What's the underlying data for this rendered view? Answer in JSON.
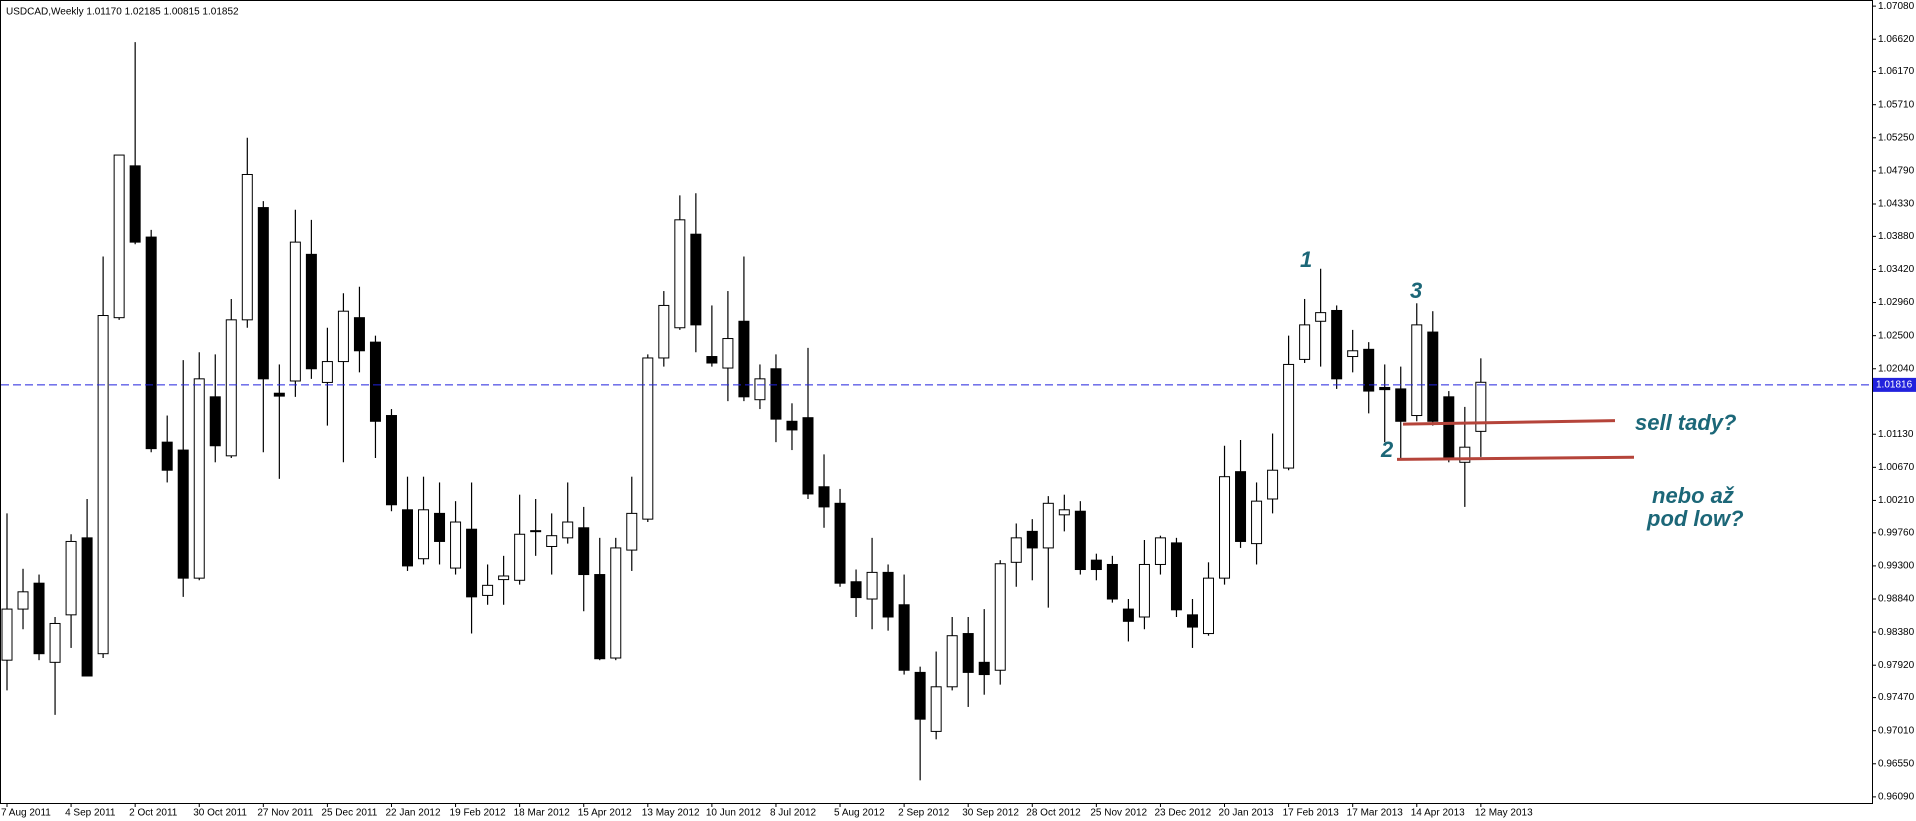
{
  "chart_data": {
    "type": "candlestick",
    "title": "USDCAD,Weekly  1.01170 1.02185 1.00815 1.01852",
    "categories": [
      "7 Aug 2011",
      null,
      null,
      null,
      "4 Sep 2011",
      null,
      null,
      null,
      "2 Oct 2011",
      null,
      null,
      null,
      "30 Oct 2011",
      null,
      null,
      null,
      "27 Nov 2011",
      null,
      null,
      null,
      "25 Dec 2011",
      null,
      null,
      null,
      "22 Jan 2012",
      null,
      null,
      null,
      "19 Feb 2012",
      null,
      null,
      null,
      "18 Mar 2012",
      null,
      null,
      null,
      "15 Apr 2012",
      null,
      null,
      null,
      "13 May 2012",
      null,
      null,
      null,
      "10 Jun 2012",
      null,
      null,
      null,
      "8 Jul 2012",
      null,
      null,
      null,
      "5 Aug 2012",
      null,
      null,
      null,
      "2 Sep 2012",
      null,
      null,
      null,
      "30 Sep 2012",
      null,
      null,
      null,
      "28 Oct 2012",
      null,
      null,
      null,
      "25 Nov 2012",
      null,
      null,
      null,
      "23 Dec 2012",
      null,
      null,
      null,
      "20 Jan 2013",
      null,
      null,
      null,
      "17 Feb 2013",
      null,
      null,
      null,
      "17 Mar 2013",
      null,
      null,
      null,
      "14 Apr 2013",
      null,
      null,
      null,
      "12 May 2013"
    ],
    "open": [
      0.9799,
      0.987,
      0.9906,
      0.9796,
      0.9862,
      0.9969,
      0.9808,
      1.0275,
      1.0486,
      1.0387,
      1.0102,
      1.0091,
      0.9913,
      1.0165,
      1.0083,
      1.0272,
      1.0428,
      1.017,
      1.0187,
      1.0363,
      1.0185,
      1.0214,
      1.0275,
      1.0241,
      1.0139,
      1.0008,
      0.994,
      1.0003,
      0.9927,
      0.9981,
      0.9889,
      0.9911,
      0.991,
      0.9978,
      0.9957,
      0.9969,
      0.9983,
      0.9918,
      0.9802,
      0.9952,
      0.9995,
      1.0219,
      1.0261,
      1.0391,
      1.0221,
      1.0205,
      1.027,
      1.0161,
      1.0204,
      1.0131,
      1.0136,
      1.004,
      1.0017,
      0.9908,
      0.9884,
      0.9921,
      0.9876,
      0.9782,
      0.97,
      0.9762,
      0.9836,
      0.9796,
      0.9785,
      0.9935,
      0.9978,
      0.9955,
      1.0001,
      1.0006,
      0.9938,
      0.9932,
      0.987,
      0.9859,
      0.9932,
      0.9962,
      0.9862,
      0.9836,
      0.9913,
      1.0061,
      0.9961,
      1.0023,
      1.0066,
      1.0217,
      1.027,
      1.0285,
      1.0221,
      1.0231,
      1.0178,
      1.0176,
      1.0139,
      1.0255,
      1.0165,
      1.0074,
      1.0117
    ],
    "high": [
      1.0003,
      0.9926,
      0.9918,
      0.9859,
      0.9974,
      1.0023,
      1.036,
      1.0501,
      1.0658,
      1.0397,
      1.0139,
      1.0216,
      1.0227,
      1.0224,
      1.0301,
      1.0525,
      1.0437,
      1.021,
      1.0425,
      1.0411,
      1.0261,
      1.0309,
      1.0318,
      1.025,
      1.0148,
      1.0054,
      1.0054,
      1.0046,
      1.002,
      1.0046,
      0.9932,
      0.9944,
      1.0029,
      1.0023,
      1.0003,
      1.0046,
      1.0012,
      0.9969,
      0.9969,
      1.0054,
      1.0224,
      1.0312,
      1.0445,
      1.0448,
      1.0292,
      1.0312,
      1.036,
      1.021,
      1.0224,
      1.0156,
      1.0233,
      1.0085,
      1.0037,
      0.9925,
      0.9969,
      0.9932,
      0.9918,
      0.979,
      0.9811,
      0.9859,
      0.9859,
      0.987,
      0.9938,
      0.9989,
      0.9995,
      1.0027,
      1.0029,
      1.002,
      0.9947,
      0.9944,
      0.9884,
      0.9966,
      0.9972,
      0.9969,
      0.9884,
      0.9935,
      1.0097,
      1.0105,
      1.0046,
      1.0114,
      1.025,
      1.0301,
      1.0343,
      1.0292,
      1.0258,
      1.0241,
      1.021,
      1.0207,
      1.0295,
      1.0284,
      1.0173,
      1.0151,
      1.02185
    ],
    "low": [
      0.9757,
      0.9842,
      0.9799,
      0.9723,
      0.9816,
      0.9777,
      0.9802,
      1.0272,
      1.0377,
      1.0088,
      1.0046,
      0.9887,
      0.991,
      1.0074,
      1.008,
      1.0261,
      1.0088,
      1.0051,
      1.0165,
      1.019,
      1.0125,
      1.0074,
      1.0199,
      1.008,
      1.0006,
      0.9923,
      0.9932,
      0.9932,
      0.9918,
      0.9836,
      0.9876,
      0.9876,
      0.9904,
      0.9944,
      0.9918,
      0.9961,
      0.9867,
      0.9799,
      0.9799,
      0.9923,
      0.9991,
      1.0207,
      1.0258,
      1.0227,
      1.0207,
      1.0159,
      1.0159,
      1.0148,
      1.0102,
      1.0091,
      1.0023,
      0.9983,
      0.9901,
      0.9859,
      0.9842,
      0.984,
      0.9779,
      0.9632,
      0.9689,
      0.9757,
      0.9734,
      0.9751,
      0.9765,
      0.9901,
      0.991,
      0.9872,
      0.9978,
      0.9918,
      0.991,
      0.9879,
      0.9825,
      0.9842,
      0.9918,
      0.9859,
      0.9816,
      0.9833,
      0.9904,
      0.9955,
      0.9932,
      1.0003,
      1.0063,
      1.0212,
      1.0207,
      1.0176,
      1.0199,
      1.0142,
      1.0102,
      1.008,
      1.0131,
      1.0125,
      1.0074,
      1.0012,
      1.00815
    ],
    "close": [
      0.987,
      0.9894,
      0.9808,
      0.985,
      0.9964,
      0.9777,
      1.0278,
      1.0501,
      1.038,
      1.0093,
      1.0063,
      0.9913,
      1.019,
      1.0097,
      1.0272,
      1.0474,
      1.019,
      1.0166,
      1.038,
      1.0204,
      1.0214,
      1.0284,
      1.0229,
      1.0131,
      1.0015,
      0.993,
      1.0008,
      0.9964,
      0.9991,
      0.9887,
      0.9903,
      0.9916,
      0.9974,
      0.9979,
      0.9972,
      0.9991,
      0.9918,
      0.9801,
      0.9955,
      1.0003,
      1.0219,
      1.0292,
      1.0411,
      1.0265,
      1.0212,
      1.0246,
      1.0165,
      1.019,
      1.0134,
      1.0119,
      1.003,
      1.0012,
      0.9906,
      0.9886,
      0.9921,
      0.9859,
      0.9785,
      0.9717,
      0.9762,
      0.9833,
      0.9782,
      0.9779,
      0.9933,
      0.9969,
      0.9955,
      1.0017,
      1.0008,
      0.9925,
      0.9925,
      0.9884,
      0.9853,
      0.9932,
      0.9969,
      0.9869,
      0.9845,
      0.9913,
      1.0054,
      0.9964,
      1.002,
      1.0063,
      1.021,
      1.0265,
      1.0282,
      1.019,
      1.0229,
      1.0173,
      1.0175,
      1.0131,
      1.0265,
      1.0131,
      1.008,
      1.0095,
      1.01852
    ],
    "up_color": "#ffffff",
    "down_color": "#000000",
    "ylim": [
      0.96005,
      1.07165
    ],
    "yticks": [
      {
        "value": 1.0708,
        "label": "1.07080"
      },
      {
        "value": 1.0662,
        "label": "1.06620"
      },
      {
        "value": 1.0617,
        "label": "1.06170"
      },
      {
        "value": 1.0571,
        "label": "1.05710"
      },
      {
        "value": 1.0525,
        "label": "1.05250"
      },
      {
        "value": 1.0479,
        "label": "1.04790"
      },
      {
        "value": 1.0433,
        "label": "1.04330"
      },
      {
        "value": 1.0388,
        "label": "1.03880"
      },
      {
        "value": 1.0342,
        "label": "1.03420"
      },
      {
        "value": 1.0296,
        "label": "1.02960"
      },
      {
        "value": 1.025,
        "label": "1.02500"
      },
      {
        "value": 1.0204,
        "label": "1.02040"
      },
      {
        "value": 1.0113,
        "label": "1.01130"
      },
      {
        "value": 1.0067,
        "label": "1.00670"
      },
      {
        "value": 1.0021,
        "label": "1.00210"
      },
      {
        "value": 0.9976,
        "label": "0.99760"
      },
      {
        "value": 0.993,
        "label": "0.99300"
      },
      {
        "value": 0.9884,
        "label": "0.98840"
      },
      {
        "value": 0.9838,
        "label": "0.98380"
      },
      {
        "value": 0.9792,
        "label": "0.97920"
      },
      {
        "value": 0.9747,
        "label": "0.97470"
      },
      {
        "value": 0.9701,
        "label": "0.97010"
      },
      {
        "value": 0.9655,
        "label": "0.96550"
      },
      {
        "value": 0.9609,
        "label": "0.96090"
      }
    ],
    "price_line": {
      "value": 1.01816,
      "label": "1.01816",
      "color": "#2222dd"
    },
    "trend_lines": [
      {
        "start": 1.0127,
        "end": 1.0132,
        "color": "#b5443a"
      },
      {
        "start": 1.0078,
        "end": 1.0081,
        "color": "#b5443a"
      }
    ],
    "annotations": [
      "1",
      "2",
      "3",
      "sell tady?",
      "nebo až",
      "pod low?"
    ]
  }
}
